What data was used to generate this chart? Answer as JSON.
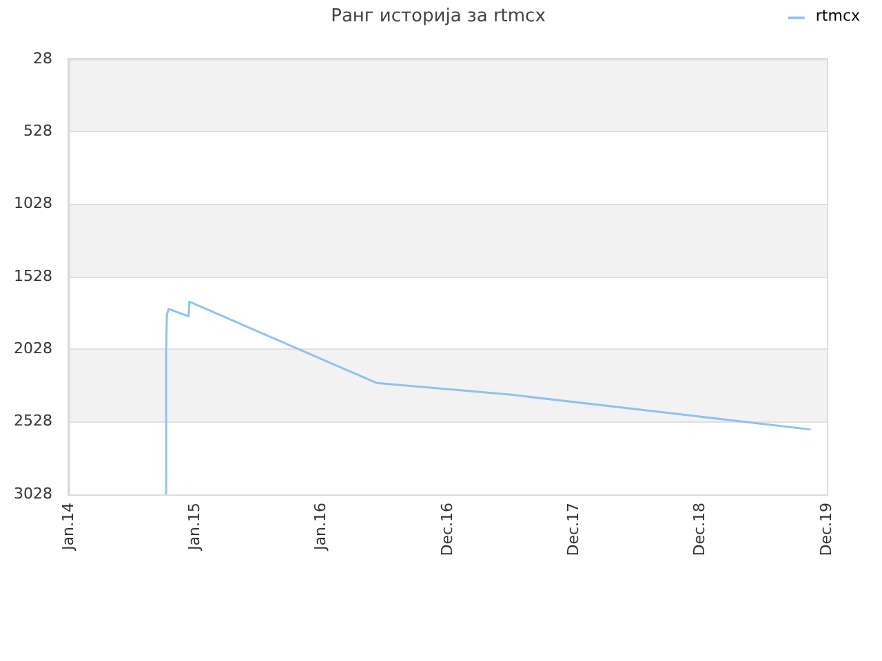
{
  "chart_data": {
    "type": "line",
    "title": "Ранг историја за rtmcx",
    "x": [
      "2014-10-07",
      "2014-10-09",
      "2014-10-11",
      "2014-10-16",
      "2014-12-13",
      "2014-12-15",
      "2016-06-08",
      "2017-06-28",
      "2019-11-12"
    ],
    "series": [
      {
        "name": "rtmcx",
        "color": "#8ec2f3",
        "values": [
          3028,
          2050,
          1790,
          1750,
          1800,
          1700,
          2260,
          2340,
          2580
        ]
      }
    ],
    "xlim": [
      "2014-01-01",
      "2019-12-31"
    ],
    "xticks": [
      {
        "value": "2014-01-01",
        "label": "Jan.14"
      },
      {
        "value": "2015-01-01",
        "label": "Jan.15"
      },
      {
        "value": "2016-01-01",
        "label": "Jan.16"
      },
      {
        "value": "2016-12-31",
        "label": "Dec.16"
      },
      {
        "value": "2017-12-31",
        "label": "Dec.17"
      },
      {
        "value": "2018-12-31",
        "label": "Dec.18"
      },
      {
        "value": "2019-12-31",
        "label": "Dec.19"
      }
    ],
    "ylim": [
      3028,
      28
    ],
    "yticks": [
      28,
      528,
      1028,
      1528,
      2028,
      2528,
      3028
    ],
    "bands": [
      {
        "axis": "y",
        "from": 28,
        "to": 528,
        "color": "#f2f2f2"
      },
      {
        "axis": "y",
        "from": 1028,
        "to": 1528,
        "color": "#f2f2f2"
      },
      {
        "axis": "y",
        "from": 2028,
        "to": 2528,
        "color": "#f2f2f2"
      }
    ],
    "grid": "y",
    "legend": "top right"
  }
}
